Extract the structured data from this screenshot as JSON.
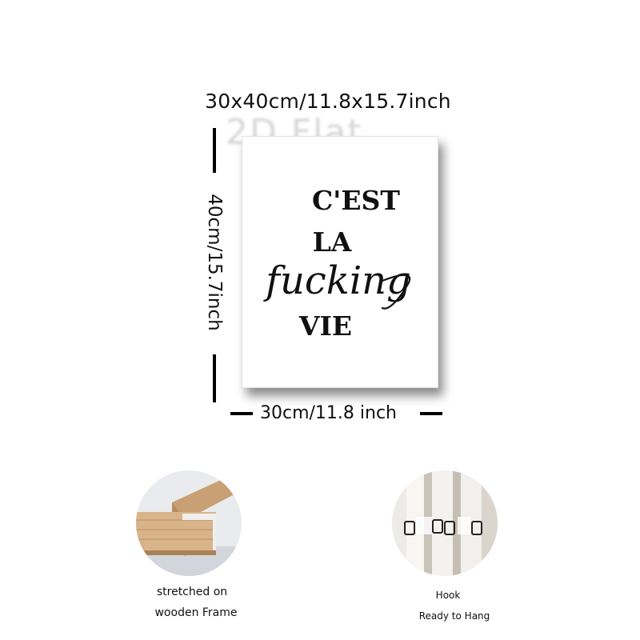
{
  "dimensions": {
    "overall": "30x40cm/11.8x15.7inch",
    "height_label": "40cm/15.7inch",
    "width_label": "30cm/11.8 inch"
  },
  "watermark_text": "2D Flat",
  "poster": {
    "line1": "C'EST",
    "line2": "LA",
    "line3_script": "fucking",
    "line4": "VIE"
  },
  "features": [
    {
      "caption_line1": "stretched on",
      "caption_line2": "wooden Frame",
      "image": "wooden-frame-corner"
    },
    {
      "caption_line1": "Hook",
      "caption_line2": "Ready to Hang",
      "image": "hanging-hook"
    }
  ],
  "colors": {
    "text": "#111111",
    "background": "#ffffff",
    "wood": "#d9b48a"
  }
}
